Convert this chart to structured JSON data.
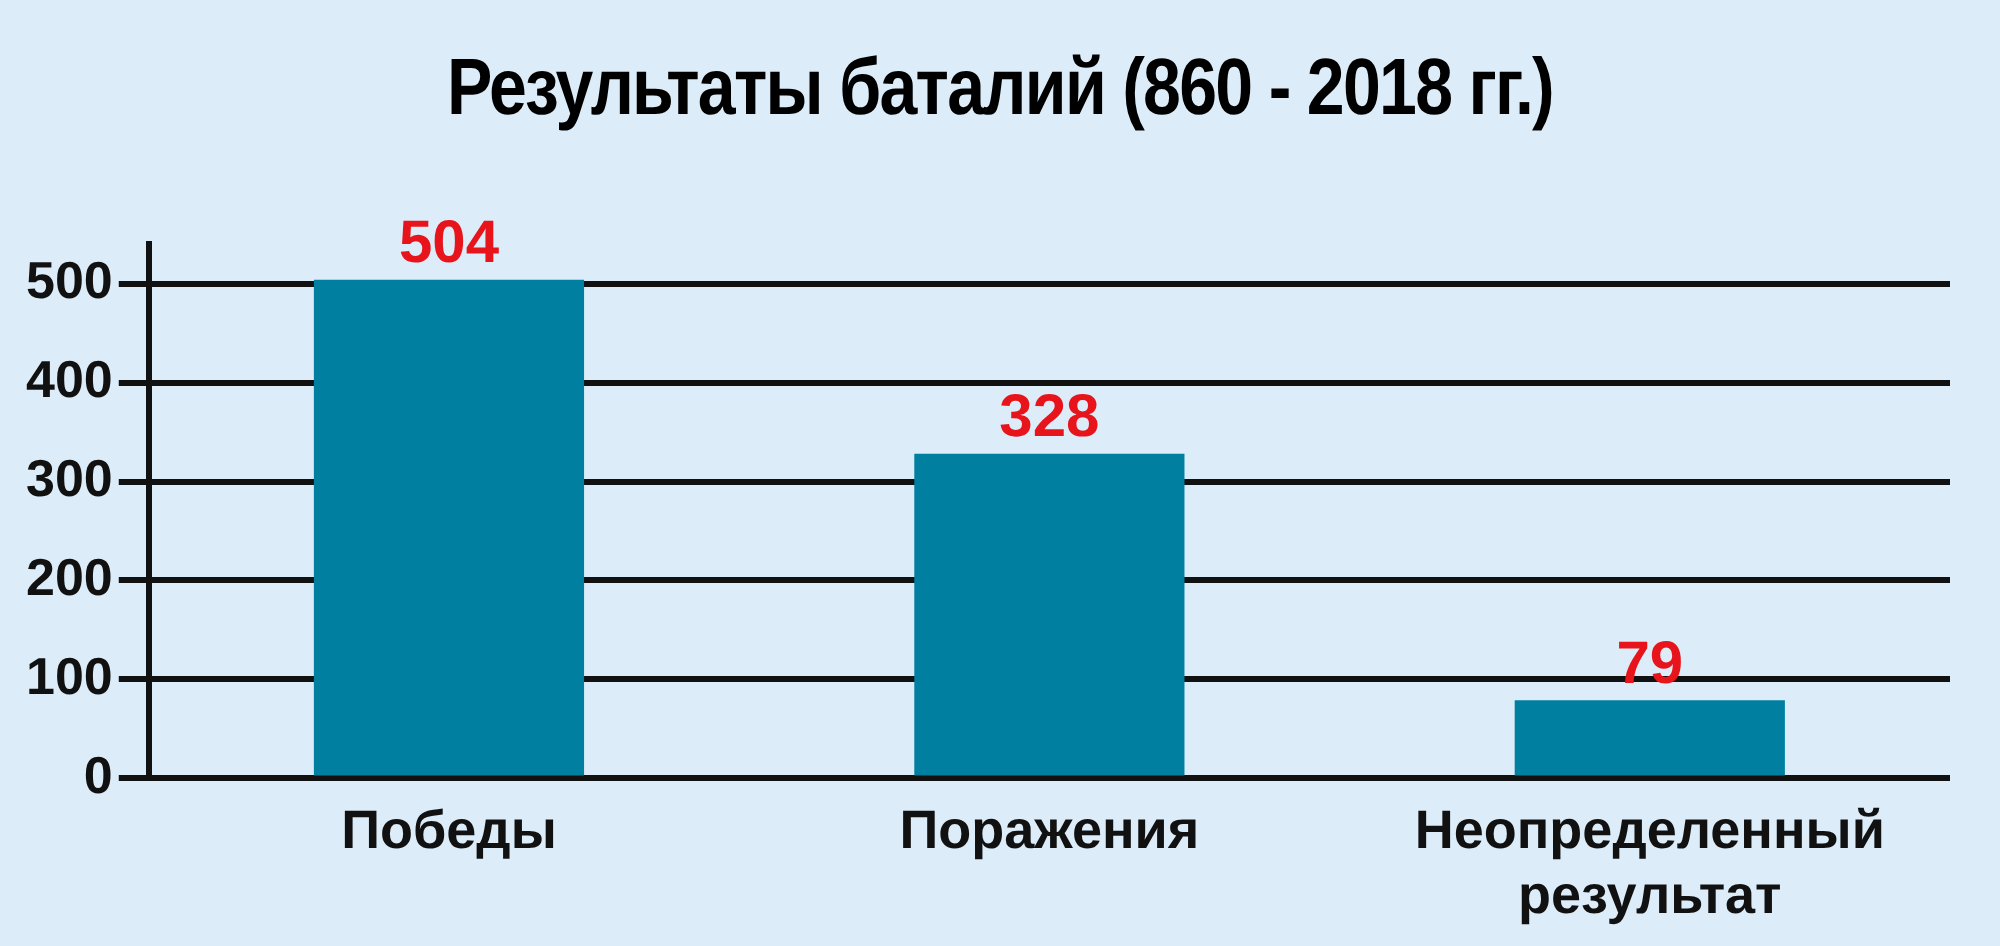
{
  "chart_data": {
    "type": "bar",
    "title": "Результаты баталий (860 - 2018 гг.)",
    "categories": [
      "Победы",
      "Поражения",
      "Неопределенный результат"
    ],
    "values": [
      504,
      328,
      79
    ],
    "color": "#007fa0",
    "data_labels": true,
    "ylim": [
      0,
      540
    ],
    "yticks": [
      0,
      100,
      200,
      300,
      400,
      500
    ],
    "grid": "y",
    "legend": false
  }
}
